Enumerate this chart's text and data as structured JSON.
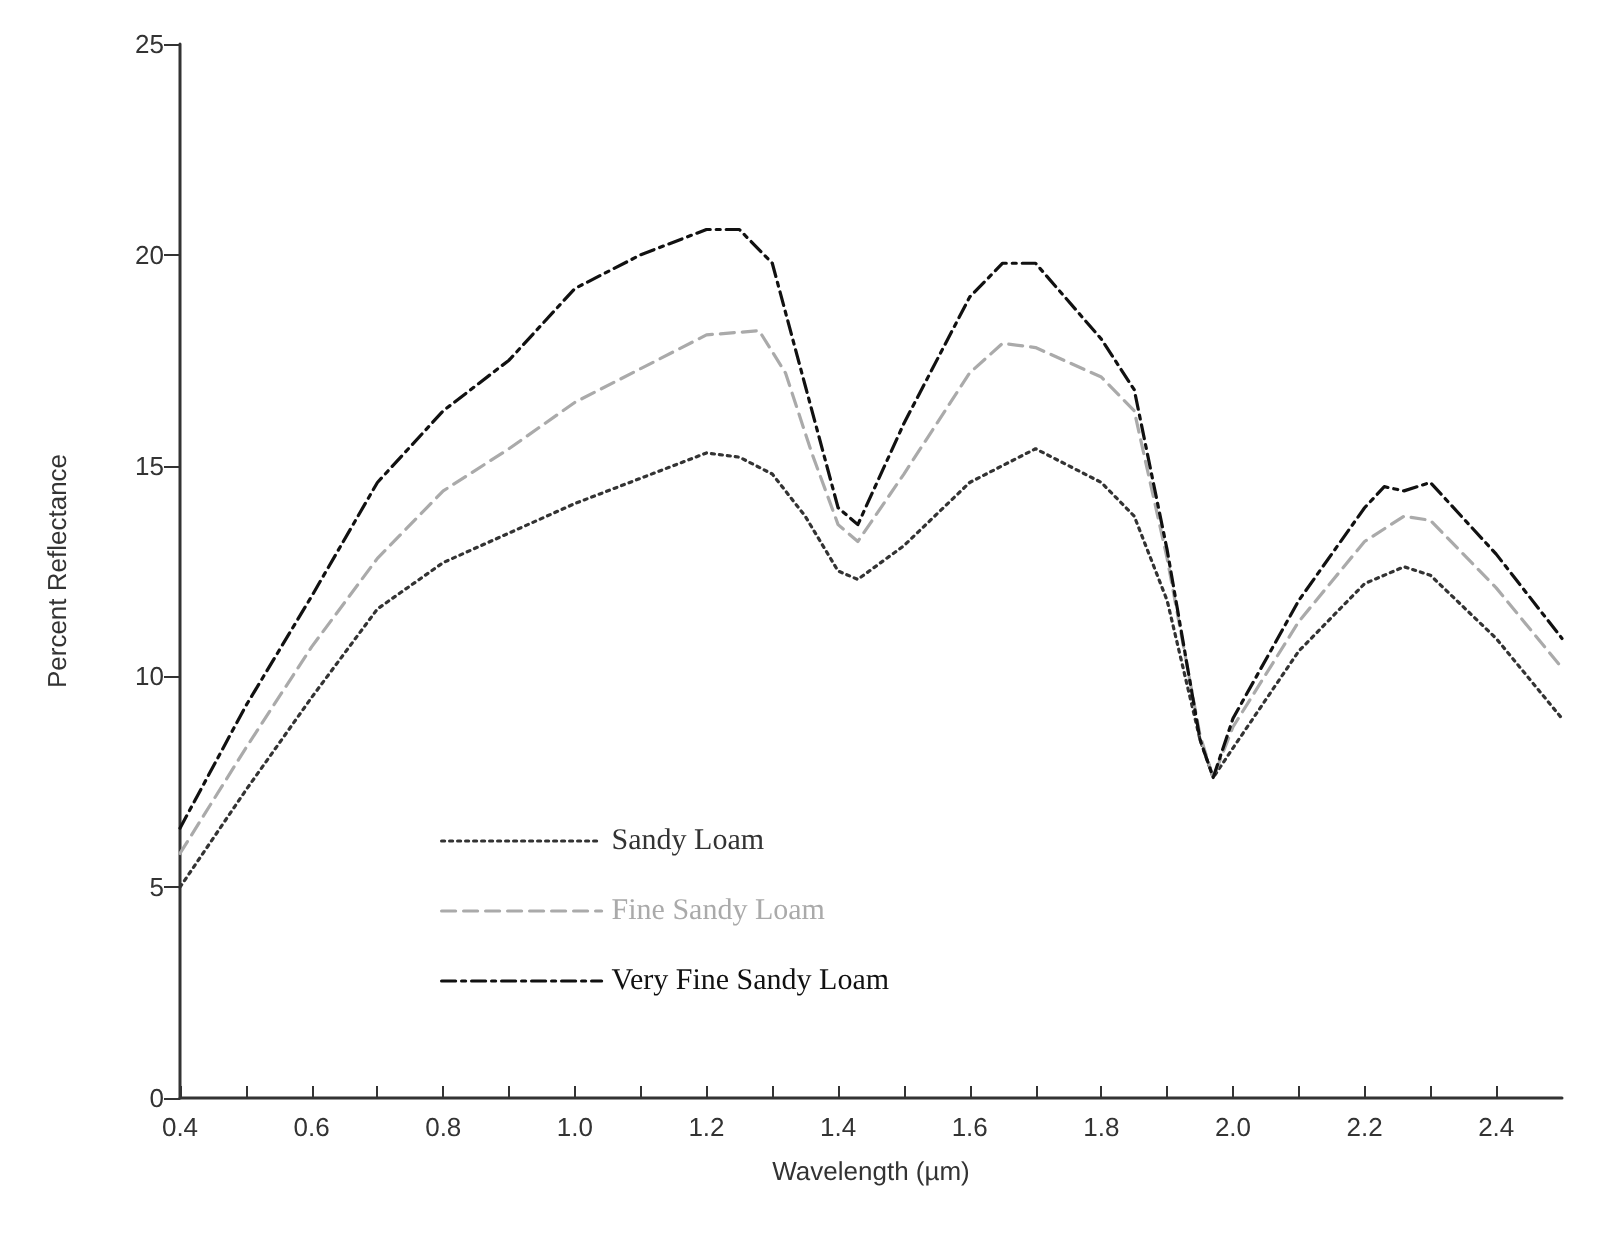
{
  "chart_data": {
    "type": "line",
    "xlabel": "Wavelength (µm)",
    "ylabel": "Percent Reflectance",
    "xlim": [
      0.4,
      2.5
    ],
    "ylim": [
      0,
      25
    ],
    "xticks": [
      {
        "value": 0.4,
        "label": "0.4"
      },
      {
        "value": 0.5,
        "label": null
      },
      {
        "value": 0.6,
        "label": "0.6"
      },
      {
        "value": 0.7,
        "label": null
      },
      {
        "value": 0.8,
        "label": "0.8"
      },
      {
        "value": 0.9,
        "label": null
      },
      {
        "value": 1.0,
        "label": "1.0"
      },
      {
        "value": 1.1,
        "label": null
      },
      {
        "value": 1.2,
        "label": "1.2"
      },
      {
        "value": 1.3,
        "label": null
      },
      {
        "value": 1.4,
        "label": "1.4"
      },
      {
        "value": 1.5,
        "label": null
      },
      {
        "value": 1.6,
        "label": "1.6"
      },
      {
        "value": 1.7,
        "label": null
      },
      {
        "value": 1.8,
        "label": "1.8"
      },
      {
        "value": 1.9,
        "label": null
      },
      {
        "value": 2.0,
        "label": "2.0"
      },
      {
        "value": 2.1,
        "label": null
      },
      {
        "value": 2.2,
        "label": "2.2"
      },
      {
        "value": 2.3,
        "label": null
      },
      {
        "value": 2.4,
        "label": "2.4"
      }
    ],
    "yticks": [
      0,
      5,
      10,
      15,
      20,
      25
    ],
    "grid": false,
    "legend": "bottom",
    "marker": "none",
    "series": [
      {
        "name": "Sandy Loam",
        "color": "#333333",
        "line_style": "dotted",
        "x": [
          0.4,
          0.5,
          0.6,
          0.7,
          0.8,
          0.9,
          1.0,
          1.1,
          1.2,
          1.25,
          1.3,
          1.35,
          1.4,
          1.43,
          1.5,
          1.6,
          1.7,
          1.8,
          1.85,
          1.9,
          1.95,
          1.97,
          2.0,
          2.1,
          2.2,
          2.26,
          2.3,
          2.4,
          2.5
        ],
        "values": [
          5.0,
          7.3,
          9.5,
          11.6,
          12.7,
          13.4,
          14.1,
          14.7,
          15.3,
          15.2,
          14.8,
          13.8,
          12.5,
          12.3,
          13.1,
          14.6,
          15.4,
          14.6,
          13.8,
          11.8,
          8.5,
          7.6,
          8.3,
          10.6,
          12.2,
          12.6,
          12.4,
          10.9,
          9.0
        ]
      },
      {
        "name": "Fine Sandy Loam",
        "color": "#aaaaaa",
        "line_style": "dashed",
        "x": [
          0.4,
          0.5,
          0.6,
          0.7,
          0.8,
          0.9,
          1.0,
          1.1,
          1.2,
          1.28,
          1.32,
          1.36,
          1.4,
          1.43,
          1.5,
          1.6,
          1.65,
          1.7,
          1.8,
          1.85,
          1.9,
          1.95,
          1.97,
          2.0,
          2.1,
          2.2,
          2.26,
          2.3,
          2.4,
          2.5
        ],
        "values": [
          5.8,
          8.3,
          10.7,
          12.8,
          14.4,
          15.4,
          16.5,
          17.3,
          18.1,
          18.2,
          17.2,
          15.3,
          13.6,
          13.2,
          14.8,
          17.2,
          17.9,
          17.8,
          17.1,
          16.3,
          12.8,
          8.6,
          7.6,
          8.8,
          11.3,
          13.2,
          13.8,
          13.7,
          12.1,
          10.2
        ]
      },
      {
        "name": "Very Fine Sandy Loam",
        "color": "#111111",
        "line_style": "dashdot",
        "x": [
          0.4,
          0.5,
          0.6,
          0.7,
          0.8,
          0.9,
          1.0,
          1.1,
          1.2,
          1.25,
          1.3,
          1.35,
          1.4,
          1.43,
          1.5,
          1.6,
          1.65,
          1.7,
          1.8,
          1.85,
          1.9,
          1.95,
          1.97,
          2.0,
          2.1,
          2.2,
          2.23,
          2.26,
          2.3,
          2.4,
          2.5
        ],
        "values": [
          6.4,
          9.3,
          11.9,
          14.6,
          16.3,
          17.5,
          19.2,
          20.0,
          20.6,
          20.6,
          19.8,
          16.9,
          14.0,
          13.6,
          16.0,
          19.0,
          19.8,
          19.8,
          18.0,
          16.8,
          13.0,
          8.5,
          7.6,
          9.0,
          11.8,
          14.0,
          14.5,
          14.4,
          14.6,
          12.9,
          10.9
        ]
      }
    ]
  }
}
